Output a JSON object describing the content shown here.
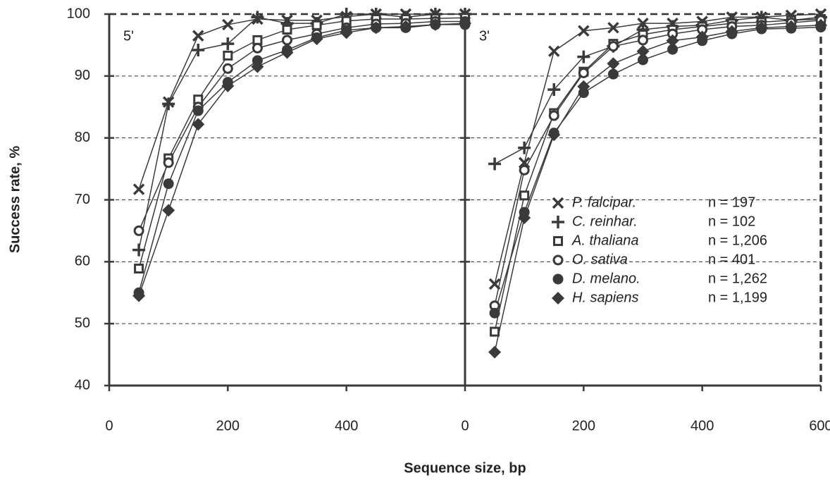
{
  "chart_data": {
    "type": "line",
    "ylabel": "Success rate, %",
    "xlabel": "Sequence size, bp",
    "ylim": [
      40,
      100
    ],
    "yticks": [
      40,
      50,
      60,
      70,
      80,
      90,
      100
    ],
    "xlim": [
      0,
      600
    ],
    "grid": true,
    "color": "#3a3a3a",
    "x": [
      50,
      100,
      150,
      200,
      250,
      300,
      350,
      400,
      450,
      500,
      550,
      600
    ],
    "panels": [
      {
        "label": "5'",
        "xticks": [
          0,
          200,
          400
        ]
      },
      {
        "label": "3'",
        "xticks": [
          0,
          200,
          400,
          600
        ]
      }
    ],
    "series": [
      {
        "name": "P. falcipar.",
        "count": "n = 197",
        "marker": "x",
        "values": [
          [
            71.7,
            85.8,
            96.5,
            98.3,
            99.2,
            99,
            99,
            99.6,
            100,
            100,
            100,
            100
          ],
          [
            56.4,
            76,
            94,
            97.3,
            97.8,
            98.5,
            98.5,
            98.8,
            99.5,
            99.5,
            99.8,
            100
          ]
        ]
      },
      {
        "name": "C. reinhar.",
        "count": "n = 102",
        "marker": "plus",
        "values": [
          [
            61.9,
            85.5,
            94.2,
            95.2,
            99.5,
            98.5,
            98.5,
            100,
            100,
            99.5,
            100,
            100
          ],
          [
            75.8,
            78.4,
            87.8,
            93.1,
            94.8,
            97.5,
            98,
            98.2,
            99,
            99.5,
            99,
            99.5
          ]
        ]
      },
      {
        "name": "A. thaliana",
        "count": "n = 1,206",
        "marker": "square",
        "values": [
          [
            58.9,
            76.7,
            86.2,
            93.3,
            95.8,
            97.5,
            98.2,
            98.9,
            99.2,
            99.2,
            99.3,
            99.4
          ],
          [
            48.7,
            70.7,
            84,
            90.7,
            95.2,
            96.7,
            97.5,
            98,
            98.5,
            98.7,
            99,
            99.2
          ]
        ]
      },
      {
        "name": "O. sativa",
        "count": "n = 401",
        "marker": "circle",
        "values": [
          [
            65,
            76,
            85,
            91.2,
            94.5,
            95.8,
            96.8,
            97.8,
            98.4,
            98.5,
            98.8,
            98.8
          ],
          [
            52.9,
            74.8,
            83.6,
            90.5,
            94.8,
            95.8,
            96.8,
            97.5,
            98,
            98.2,
            98.6,
            99
          ]
        ]
      },
      {
        "name": "D. melano.",
        "count": "n = 1,262",
        "marker": "dot",
        "values": [
          [
            55,
            72.6,
            84.4,
            89,
            92.5,
            94.2,
            96.2,
            97.4,
            97.8,
            97.8,
            98.3,
            98.3
          ],
          [
            51.7,
            68,
            80.8,
            87.3,
            90.3,
            92.6,
            94.3,
            95.7,
            96.8,
            97.6,
            97.7,
            97.9
          ]
        ]
      },
      {
        "name": "H. sapiens",
        "count": "n = 1,199",
        "marker": "diamond",
        "values": [
          [
            54.5,
            68.3,
            82.2,
            88.4,
            91.5,
            93.8,
            96,
            97,
            97.8,
            98,
            98.3,
            98.5
          ],
          [
            45.4,
            67.1,
            80.5,
            88.3,
            92,
            94,
            95.7,
            96.3,
            97.2,
            97.8,
            98,
            98.2
          ]
        ]
      }
    ]
  }
}
